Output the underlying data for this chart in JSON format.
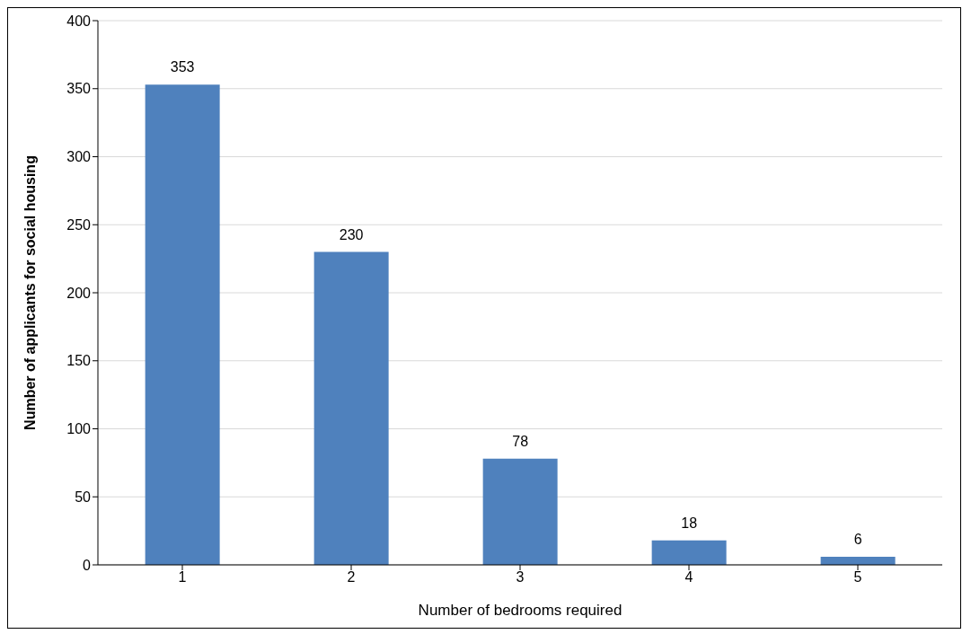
{
  "chart_data": {
    "type": "bar",
    "xlabel": "Number of bedrooms required",
    "ylabel": "Number of applicants for social housing",
    "categories": [
      "1",
      "2",
      "3",
      "4",
      "5"
    ],
    "values": [
      353,
      230,
      78,
      18,
      6
    ],
    "color": "#4f81bd",
    "ylim": [
      0,
      400
    ],
    "yticks": [
      0,
      50,
      100,
      150,
      200,
      250,
      300,
      350,
      400
    ],
    "grid": "y",
    "data_labels": true
  }
}
